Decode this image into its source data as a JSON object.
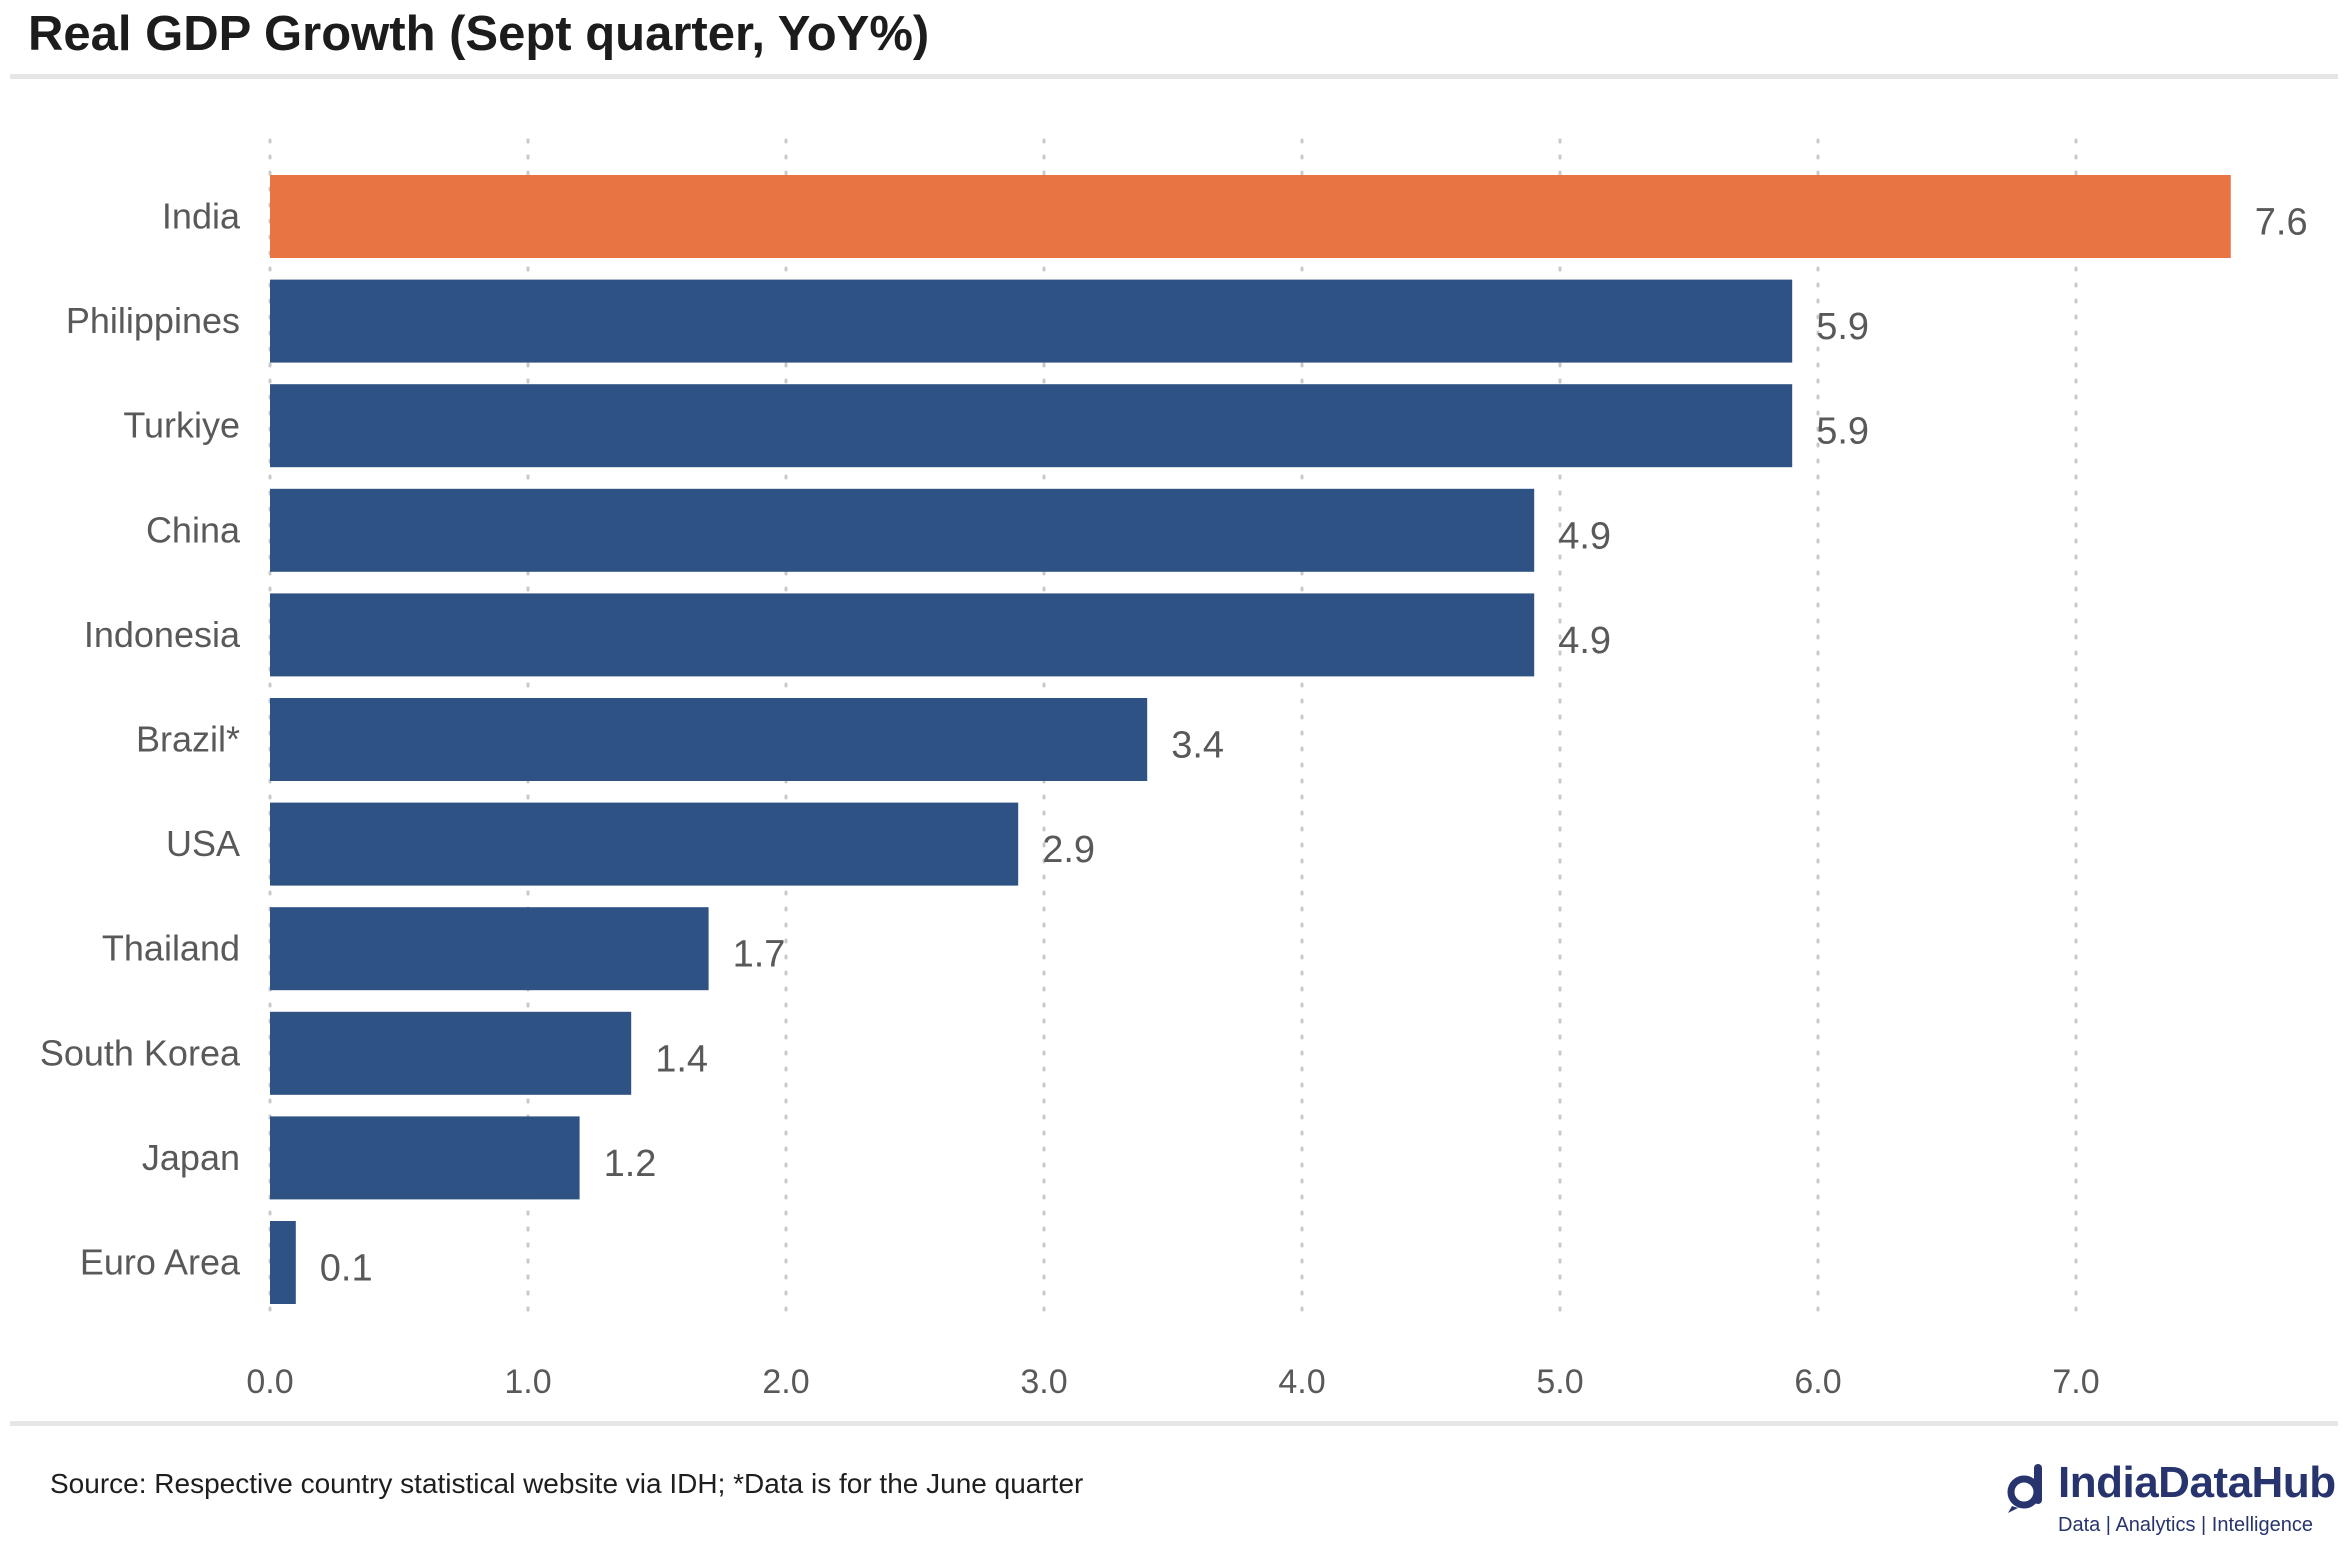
{
  "header": {
    "title": "Real GDP Growth (Sept quarter, YoY%)"
  },
  "footer": {
    "source": "Source: Respective country statistical website via IDH; *Data is for the June quarter"
  },
  "logo": {
    "name": "IndiaDataHub",
    "tagline": "Data | Analytics | Intelligence",
    "color": "#27346e"
  },
  "chart_data": {
    "type": "bar",
    "orientation": "horizontal",
    "categories": [
      "India",
      "Philippines",
      "Turkiye",
      "China",
      "Indonesia",
      "Brazil*",
      "USA",
      "Thailand",
      "South Korea",
      "Japan",
      "Euro Area"
    ],
    "values": [
      7.6,
      5.9,
      5.9,
      4.9,
      4.9,
      3.4,
      2.9,
      1.7,
      1.4,
      1.2,
      0.1
    ],
    "value_labels": [
      "7.6",
      "5.9",
      "5.9",
      "4.9",
      "4.9",
      "3.4",
      "2.9",
      "1.7",
      "1.4",
      "1.2",
      "0.1"
    ],
    "x_ticks": [
      "0.0",
      "1.0",
      "2.0",
      "3.0",
      "4.0",
      "5.0",
      "6.0",
      "7.0"
    ],
    "xlim": [
      0,
      7.6
    ],
    "grid": "vertical dotted",
    "colors": {
      "highlight": "#e87444",
      "default": "#2e5283",
      "grid": "#c8c8c8",
      "label": "#595959"
    },
    "highlight_category": "India"
  }
}
